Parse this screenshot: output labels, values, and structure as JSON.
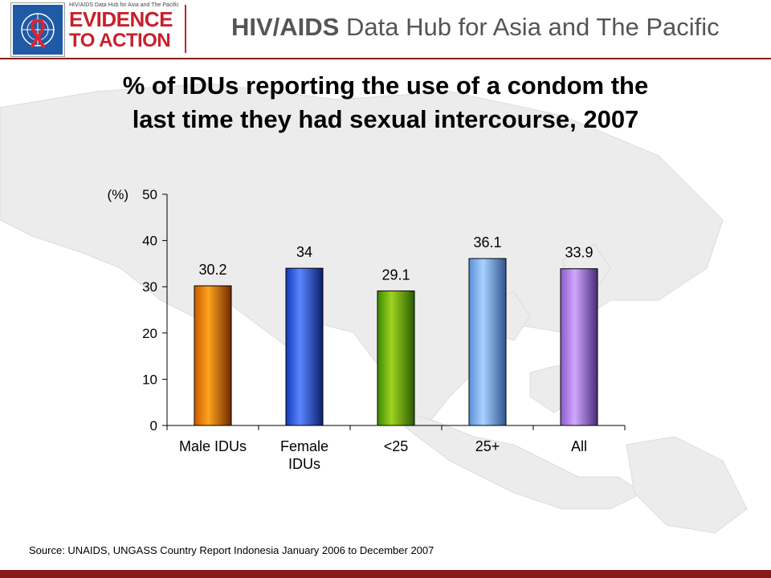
{
  "header": {
    "logo_tagline": "HIV/AIDS Data Hub for Asia and The Pacific",
    "logo_line1": "EVIDENCE",
    "logo_line2": "TO ACTION",
    "hub_title_bold": "HIV/AIDS",
    "hub_title_rest": " Data Hub for Asia and The Pacific"
  },
  "slide": {
    "title_line1": "% of IDUs reporting the use of a condom the",
    "title_line2": "last time they had sexual intercourse, 2007",
    "source": "Source: UNAIDS, UNGASS Country Report Indonesia January 2006 to December 2007"
  },
  "colors": {
    "brand_red": "#c8202a",
    "brand_dark_red": "#8a1a1a",
    "logo_blue": "#1f5aa6"
  },
  "chart_data": {
    "type": "bar",
    "title": "",
    "ylabel": "(%)",
    "xlabel": "",
    "ylim": [
      0,
      50
    ],
    "yticks": [
      0,
      10,
      20,
      30,
      40,
      50
    ],
    "categories": [
      "Male IDUs",
      "Female IDUs",
      "<25",
      "25+",
      "All"
    ],
    "category_lines": [
      [
        "Male IDUs"
      ],
      [
        "Female",
        "IDUs"
      ],
      [
        "<25"
      ],
      [
        "25+"
      ],
      [
        "All"
      ]
    ],
    "values": [
      30.2,
      34,
      29.1,
      36.1,
      33.9
    ],
    "value_labels": [
      "30.2",
      "34",
      "29.1",
      "36.1",
      "33.9"
    ],
    "bar_colors": [
      [
        "#c85a00",
        "#ffa21f",
        "#6e2a00"
      ],
      [
        "#1438b8",
        "#5b86ff",
        "#0b1f6e"
      ],
      [
        "#3c8a00",
        "#9fd321",
        "#2a5d00"
      ],
      [
        "#5b8fd6",
        "#a9d2ff",
        "#2f5590"
      ],
      [
        "#8a5ac8",
        "#d0a8ff",
        "#4a2c78"
      ]
    ],
    "grid": false,
    "legend": "none"
  }
}
